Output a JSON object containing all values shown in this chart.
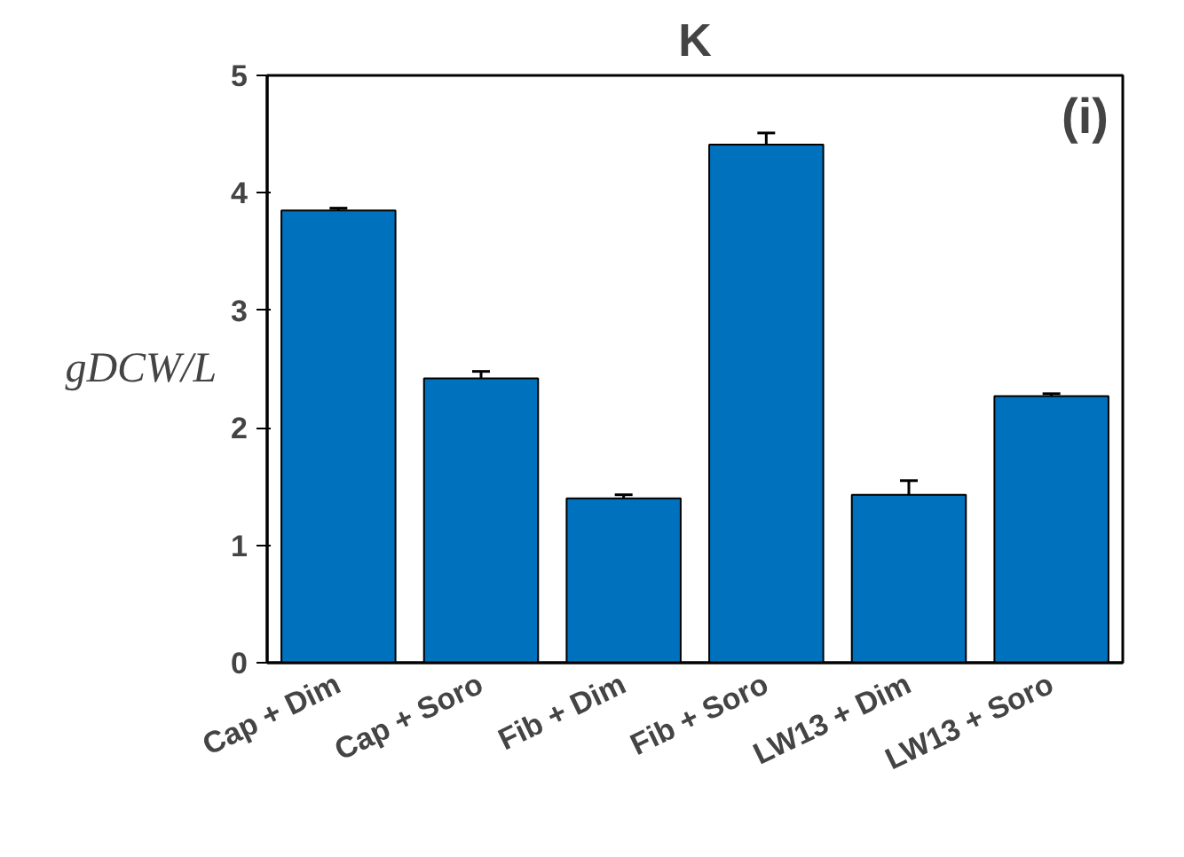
{
  "chart_data": {
    "type": "bar",
    "title": "K",
    "ylabel": "gDCW/L",
    "categories": [
      "Cap + Dim",
      "Cap + Soro",
      "Fib + Dim",
      "Fib + Soro",
      "LW13 + Dim",
      "LW13 + Soro"
    ],
    "values": [
      3.85,
      2.42,
      1.4,
      4.41,
      1.43,
      2.27
    ],
    "errors": [
      0.02,
      0.06,
      0.03,
      0.1,
      0.12,
      0.02
    ],
    "color": "#0072bd",
    "ylim": [
      0,
      5
    ],
    "yticks": [
      0,
      1,
      2,
      3,
      4,
      5
    ],
    "grid": false,
    "annotations": [
      "(i)"
    ]
  }
}
